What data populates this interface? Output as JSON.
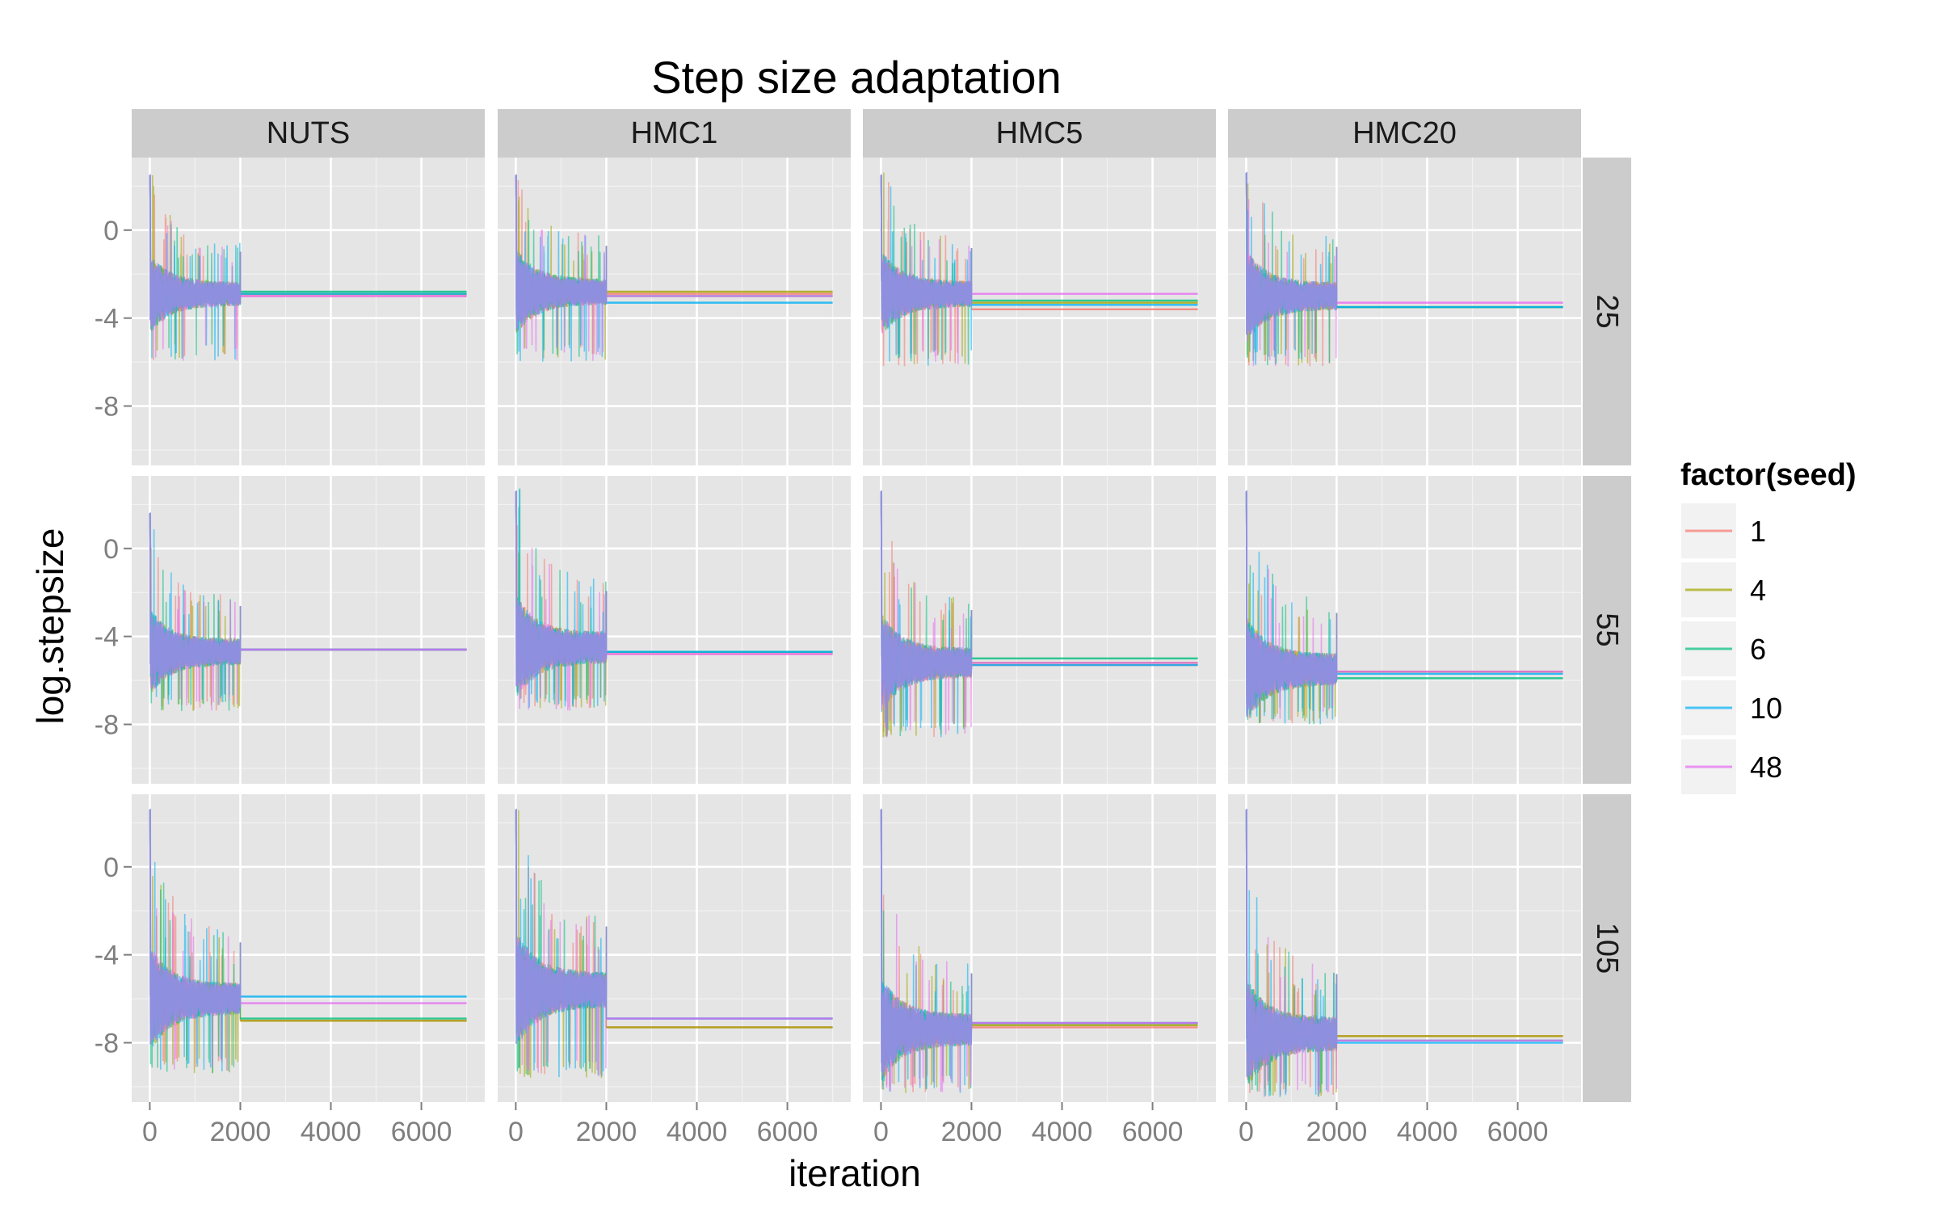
{
  "chart_data": {
    "type": "line",
    "title": "Step size adaptation",
    "xlabel": "iteration",
    "ylabel": "log.stepsize",
    "xlim": [
      -400,
      7400
    ],
    "ylim": [
      -10.7,
      3.3
    ],
    "x_ticks": [
      0,
      2000,
      4000,
      6000
    ],
    "x_tick_labels": [
      "0",
      "2000",
      "4000",
      "6000"
    ],
    "y_ticks": [
      0,
      -4,
      -8
    ],
    "y_tick_labels": [
      "0",
      "-4",
      "-8"
    ],
    "grid": true,
    "column_facets": [
      "NUTS",
      "HMC1",
      "HMC5",
      "HMC20"
    ],
    "row_facets": [
      "25",
      "55",
      "105"
    ],
    "adaptation_end": 2000,
    "iteration_end": 7000,
    "legend": {
      "title": "factor(seed)",
      "position": "right",
      "entries": [
        {
          "label": "1",
          "color": "#F8766D"
        },
        {
          "label": "4",
          "color": "#A3A500"
        },
        {
          "label": "6",
          "color": "#00BF7D"
        },
        {
          "label": "10",
          "color": "#00B0F6"
        },
        {
          "label": "48",
          "color": "#E76BF3"
        }
      ]
    },
    "series_colors": [
      "#F8766D",
      "#A3A500",
      "#00BF7D",
      "#00B0F6",
      "#E76BF3"
    ],
    "panels": [
      {
        "row": "25",
        "col": "NUTS",
        "start": 2.5,
        "center": -2.9,
        "spread": 1.2,
        "low": -6.0,
        "final": [
          -3.0,
          -2.9,
          -2.8,
          -2.9,
          -3.0
        ]
      },
      {
        "row": "25",
        "col": "HMC1",
        "start": 2.5,
        "center": -2.8,
        "spread": 1.3,
        "low": -6.0,
        "final": [
          -2.9,
          -2.8,
          -3.0,
          -3.3,
          -3.0
        ]
      },
      {
        "row": "25",
        "col": "HMC5",
        "start": 2.5,
        "center": -2.9,
        "spread": 1.3,
        "low": -6.2,
        "final": [
          -3.6,
          -3.3,
          -3.2,
          -3.4,
          -2.9
        ]
      },
      {
        "row": "25",
        "col": "HMC20",
        "start": 2.6,
        "center": -3.0,
        "spread": 1.4,
        "low": -6.2,
        "final": [
          -3.5,
          -3.5,
          -3.5,
          -3.5,
          -3.3
        ]
      },
      {
        "row": "55",
        "col": "NUTS",
        "start": 1.6,
        "center": -4.7,
        "spread": 1.3,
        "low": -7.4,
        "final": [
          -4.6,
          -4.6,
          -4.6,
          -4.6,
          -4.6
        ]
      },
      {
        "row": "55",
        "col": "HMC1",
        "start": 2.6,
        "center": -4.5,
        "spread": 1.6,
        "low": -7.4,
        "final": [
          -4.8,
          -4.7,
          -4.7,
          -4.7,
          -4.8
        ]
      },
      {
        "row": "55",
        "col": "HMC5",
        "start": 2.6,
        "center": -5.2,
        "spread": 1.5,
        "low": -8.6,
        "final": [
          -5.3,
          -5.2,
          -5.0,
          -5.3,
          -5.2
        ]
      },
      {
        "row": "55",
        "col": "HMC20",
        "start": 2.6,
        "center": -5.5,
        "spread": 1.6,
        "low": -8.0,
        "final": [
          -5.6,
          -5.6,
          -5.9,
          -5.7,
          -5.6
        ]
      },
      {
        "row": "105",
        "col": "NUTS",
        "start": 2.6,
        "center": -6.0,
        "spread": 1.6,
        "low": -9.4,
        "final": [
          -7.0,
          -7.0,
          -6.9,
          -5.9,
          -6.2
        ]
      },
      {
        "row": "105",
        "col": "HMC1",
        "start": 2.6,
        "center": -5.6,
        "spread": 1.8,
        "low": -9.6,
        "final": [
          -7.3,
          -7.3,
          -6.9,
          -6.9,
          -6.9
        ]
      },
      {
        "row": "105",
        "col": "HMC5",
        "start": 2.6,
        "center": -7.4,
        "spread": 1.6,
        "low": -10.3,
        "final": [
          -7.3,
          -7.2,
          -7.1,
          -7.1,
          -7.1
        ]
      },
      {
        "row": "105",
        "col": "HMC20",
        "start": 2.6,
        "center": -7.6,
        "spread": 1.7,
        "low": -10.5,
        "final": [
          -7.7,
          -7.7,
          -7.9,
          -8.0,
          -7.9
        ]
      }
    ]
  }
}
